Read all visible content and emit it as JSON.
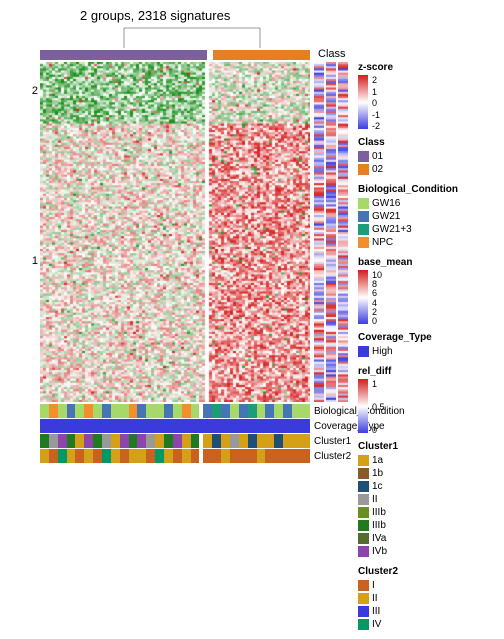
{
  "title": "2 groups, 2318 signatures",
  "class_label": "Class",
  "row_groups": [
    {
      "label": "2",
      "fraction": 0.18
    },
    {
      "label": "1",
      "fraction": 0.82
    }
  ],
  "class_bar": {
    "segments": [
      {
        "color": "#7b5fa0",
        "width": 0.62
      },
      {
        "color": "#ffffff",
        "width": 0.02
      },
      {
        "color": "#e67e22",
        "width": 0.36
      }
    ]
  },
  "heatmap": {
    "type": "heatmap",
    "rows": 160,
    "cols": 90,
    "col_gap_at": 0.62,
    "palette": {
      "low": "#1a8f1a",
      "mid": "#ffffff",
      "high": "#d62020"
    },
    "zlim": [
      -2,
      2
    ],
    "seed": 42,
    "row_group_bias": [
      {
        "frac": 0.18,
        "left_mean": -1.0,
        "right_mean": -0.2
      },
      {
        "frac": 0.82,
        "left_mean": 0.1,
        "right_mean": 0.9
      }
    ]
  },
  "side_tracks": [
    {
      "name": "z-score",
      "palette": [
        "#3a3ae0",
        "#ffffff",
        "#d62020"
      ],
      "range": [
        -2,
        2
      ],
      "ticks": [
        "2",
        "1",
        "0",
        "-1",
        "-2"
      ]
    },
    {
      "name": "base_mean",
      "palette": [
        "#3a3ae0",
        "#ffffff",
        "#d62020"
      ],
      "range": [
        0,
        10
      ],
      "ticks": [
        "10",
        "8",
        "6",
        "4",
        "2",
        "0"
      ]
    },
    {
      "name": "rel_diff",
      "palette": [
        "#3a3ae0",
        "#ffffff",
        "#d62020"
      ],
      "range": [
        0,
        1
      ],
      "ticks": [
        "1",
        "0.5",
        "0"
      ]
    }
  ],
  "bottom_annotations": [
    {
      "name": "Biological_Condition",
      "cells": [
        "#a6d96a",
        "#f28e2b",
        "#a6d96a",
        "#4575b4",
        "#a6d96a",
        "#f28e2b",
        "#a6d96a",
        "#4575b4",
        "#a6d96a",
        "#a6d96a",
        "#f28e2b",
        "#4575b4",
        "#a6d96a",
        "#a6d96a",
        "#4575b4",
        "#a6d96a",
        "#f28e2b",
        "#a6d96a",
        "#4575b4",
        "#1b9e77",
        "#4575b4",
        "#a6d96a",
        "#4575b4",
        "#1b9e77",
        "#a6d96a",
        "#4575b4",
        "#a6d96a",
        "#4575b4",
        "#a6d96a",
        "#a6d96a"
      ]
    },
    {
      "name": "Coverage_Type",
      "cells": [
        "#3b3bdc"
      ],
      "uniform": true
    },
    {
      "name": "Cluster1",
      "cells": [
        "#207a20",
        "#999999",
        "#8e44ad",
        "#207a20",
        "#d4a017",
        "#8e44ad",
        "#207a20",
        "#999999",
        "#d4a017",
        "#8e44ad",
        "#207a20",
        "#8e44ad",
        "#999999",
        "#d4a017",
        "#207a20",
        "#8e44ad",
        "#d4a017",
        "#207a20",
        "#d4a017",
        "#1f4e79",
        "#d4a017",
        "#999999",
        "#d4a017",
        "#1f4e79",
        "#d4a017",
        "#d4a017",
        "#1f4e79",
        "#d4a017",
        "#d4a017",
        "#d4a017"
      ]
    },
    {
      "name": "Cluster2",
      "cells": [
        "#d4a017",
        "#c9621f",
        "#009966",
        "#d4a017",
        "#c9621f",
        "#d4a017",
        "#c9621f",
        "#009966",
        "#d4a017",
        "#c9621f",
        "#d4a017",
        "#d4a017",
        "#c9621f",
        "#009966",
        "#d4a017",
        "#c9621f",
        "#d4a017",
        "#c9621f",
        "#c9621f",
        "#c9621f",
        "#d4a017",
        "#c9621f",
        "#c9621f",
        "#c9621f",
        "#d4a017",
        "#c9621f",
        "#c9621f",
        "#c9621f",
        "#c9621f",
        "#c9621f"
      ]
    }
  ],
  "legends": {
    "class": {
      "title": "Class",
      "items": [
        {
          "c": "#7b5fa0",
          "l": "01"
        },
        {
          "c": "#e67e22",
          "l": "02"
        }
      ]
    },
    "bio": {
      "title": "Biological_Condition",
      "items": [
        {
          "c": "#a6d96a",
          "l": "GW16"
        },
        {
          "c": "#4575b4",
          "l": "GW21"
        },
        {
          "c": "#1b9e77",
          "l": "GW21+3"
        },
        {
          "c": "#f28e2b",
          "l": "NPC"
        }
      ]
    },
    "cov": {
      "title": "Coverage_Type",
      "items": [
        {
          "c": "#3b3bdc",
          "l": "High"
        }
      ]
    },
    "c1": {
      "title": "Cluster1",
      "items": [
        {
          "c": "#d4a017",
          "l": "1a"
        },
        {
          "c": "#8b5a2b",
          "l": "1b"
        },
        {
          "c": "#1f4e79",
          "l": "1c"
        },
        {
          "c": "#999999",
          "l": "II"
        },
        {
          "c": "#6b8e23",
          "l": "IIIb"
        },
        {
          "c": "#207a20",
          "l": "IIIb"
        },
        {
          "c": "#556b2f",
          "l": "IVa"
        },
        {
          "c": "#8e44ad",
          "l": "IVb"
        }
      ]
    },
    "c2": {
      "title": "Cluster2",
      "items": [
        {
          "c": "#c9621f",
          "l": "I"
        },
        {
          "c": "#d4a017",
          "l": "II"
        },
        {
          "c": "#3b3bdc",
          "l": "III"
        },
        {
          "c": "#009966",
          "l": "IV"
        }
      ]
    }
  }
}
